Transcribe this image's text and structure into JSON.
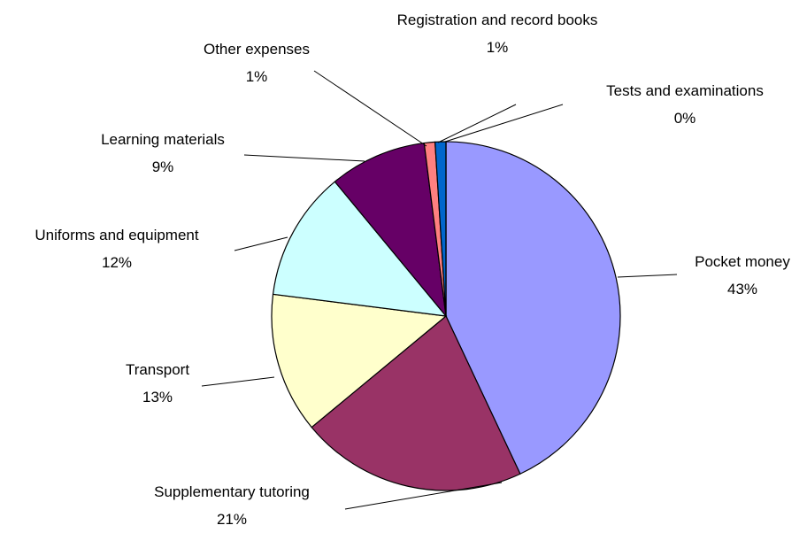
{
  "chart_data": {
    "type": "pie",
    "categories": [
      "Pocket money",
      "Supplementary tutoring",
      "Transport",
      "Uniforms and equipment",
      "Learning materials",
      "Other expenses",
      "Registration and record books",
      "Tests and examinations"
    ],
    "values": [
      43,
      21,
      13,
      12,
      9,
      1,
      1,
      0
    ],
    "value_labels": [
      "43%",
      "21%",
      "13%",
      "12%",
      "9%",
      "1%",
      "1%",
      "0%"
    ],
    "colors": [
      "#9999ff",
      "#993366",
      "#ffffcc",
      "#ccffff",
      "#660066",
      "#ff8080",
      "#0066cc",
      "#ccccff"
    ]
  }
}
